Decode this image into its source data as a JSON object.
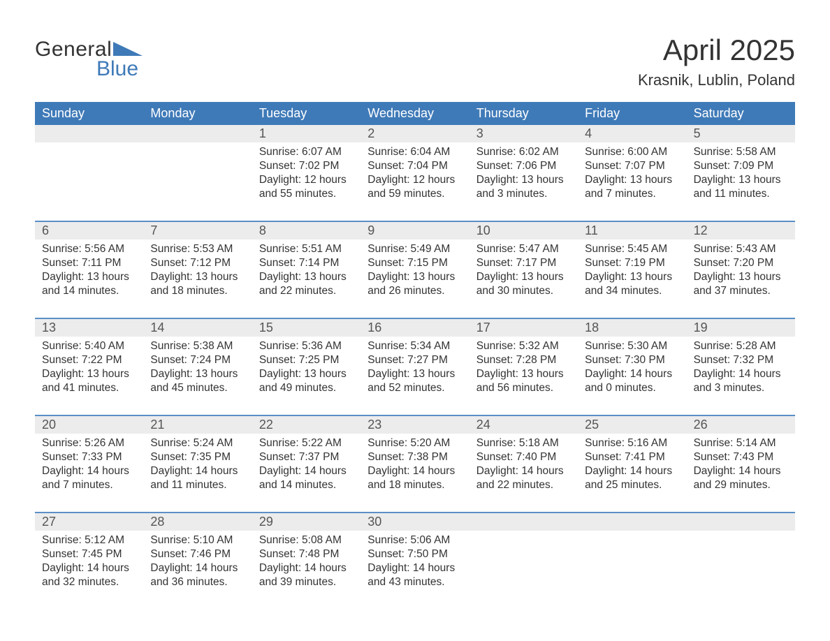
{
  "colors": {
    "accent": "#3f7ab8",
    "header_bg": "#3f7ab8",
    "daynum_bg": "#ececec",
    "row_line": "#5a8fc7",
    "text": "#333333",
    "background": "#ffffff"
  },
  "logo": {
    "line1": "General",
    "line2": "Blue"
  },
  "title": "April 2025",
  "subtitle": "Krasnik, Lublin, Poland",
  "day_headers": [
    "Sunday",
    "Monday",
    "Tuesday",
    "Wednesday",
    "Thursday",
    "Friday",
    "Saturday"
  ],
  "labels": {
    "sunrise": "Sunrise:",
    "sunset": "Sunset:",
    "daylight": "Daylight:"
  },
  "weeks": [
    [
      null,
      null,
      {
        "n": "1",
        "sunrise": "6:07 AM",
        "sunset": "7:02 PM",
        "daylight": "12 hours and 55 minutes."
      },
      {
        "n": "2",
        "sunrise": "6:04 AM",
        "sunset": "7:04 PM",
        "daylight": "12 hours and 59 minutes."
      },
      {
        "n": "3",
        "sunrise": "6:02 AM",
        "sunset": "7:06 PM",
        "daylight": "13 hours and 3 minutes."
      },
      {
        "n": "4",
        "sunrise": "6:00 AM",
        "sunset": "7:07 PM",
        "daylight": "13 hours and 7 minutes."
      },
      {
        "n": "5",
        "sunrise": "5:58 AM",
        "sunset": "7:09 PM",
        "daylight": "13 hours and 11 minutes."
      }
    ],
    [
      {
        "n": "6",
        "sunrise": "5:56 AM",
        "sunset": "7:11 PM",
        "daylight": "13 hours and 14 minutes."
      },
      {
        "n": "7",
        "sunrise": "5:53 AM",
        "sunset": "7:12 PM",
        "daylight": "13 hours and 18 minutes."
      },
      {
        "n": "8",
        "sunrise": "5:51 AM",
        "sunset": "7:14 PM",
        "daylight": "13 hours and 22 minutes."
      },
      {
        "n": "9",
        "sunrise": "5:49 AM",
        "sunset": "7:15 PM",
        "daylight": "13 hours and 26 minutes."
      },
      {
        "n": "10",
        "sunrise": "5:47 AM",
        "sunset": "7:17 PM",
        "daylight": "13 hours and 30 minutes."
      },
      {
        "n": "11",
        "sunrise": "5:45 AM",
        "sunset": "7:19 PM",
        "daylight": "13 hours and 34 minutes."
      },
      {
        "n": "12",
        "sunrise": "5:43 AM",
        "sunset": "7:20 PM",
        "daylight": "13 hours and 37 minutes."
      }
    ],
    [
      {
        "n": "13",
        "sunrise": "5:40 AM",
        "sunset": "7:22 PM",
        "daylight": "13 hours and 41 minutes."
      },
      {
        "n": "14",
        "sunrise": "5:38 AM",
        "sunset": "7:24 PM",
        "daylight": "13 hours and 45 minutes."
      },
      {
        "n": "15",
        "sunrise": "5:36 AM",
        "sunset": "7:25 PM",
        "daylight": "13 hours and 49 minutes."
      },
      {
        "n": "16",
        "sunrise": "5:34 AM",
        "sunset": "7:27 PM",
        "daylight": "13 hours and 52 minutes."
      },
      {
        "n": "17",
        "sunrise": "5:32 AM",
        "sunset": "7:28 PM",
        "daylight": "13 hours and 56 minutes."
      },
      {
        "n": "18",
        "sunrise": "5:30 AM",
        "sunset": "7:30 PM",
        "daylight": "14 hours and 0 minutes."
      },
      {
        "n": "19",
        "sunrise": "5:28 AM",
        "sunset": "7:32 PM",
        "daylight": "14 hours and 3 minutes."
      }
    ],
    [
      {
        "n": "20",
        "sunrise": "5:26 AM",
        "sunset": "7:33 PM",
        "daylight": "14 hours and 7 minutes."
      },
      {
        "n": "21",
        "sunrise": "5:24 AM",
        "sunset": "7:35 PM",
        "daylight": "14 hours and 11 minutes."
      },
      {
        "n": "22",
        "sunrise": "5:22 AM",
        "sunset": "7:37 PM",
        "daylight": "14 hours and 14 minutes."
      },
      {
        "n": "23",
        "sunrise": "5:20 AM",
        "sunset": "7:38 PM",
        "daylight": "14 hours and 18 minutes."
      },
      {
        "n": "24",
        "sunrise": "5:18 AM",
        "sunset": "7:40 PM",
        "daylight": "14 hours and 22 minutes."
      },
      {
        "n": "25",
        "sunrise": "5:16 AM",
        "sunset": "7:41 PM",
        "daylight": "14 hours and 25 minutes."
      },
      {
        "n": "26",
        "sunrise": "5:14 AM",
        "sunset": "7:43 PM",
        "daylight": "14 hours and 29 minutes."
      }
    ],
    [
      {
        "n": "27",
        "sunrise": "5:12 AM",
        "sunset": "7:45 PM",
        "daylight": "14 hours and 32 minutes."
      },
      {
        "n": "28",
        "sunrise": "5:10 AM",
        "sunset": "7:46 PM",
        "daylight": "14 hours and 36 minutes."
      },
      {
        "n": "29",
        "sunrise": "5:08 AM",
        "sunset": "7:48 PM",
        "daylight": "14 hours and 39 minutes."
      },
      {
        "n": "30",
        "sunrise": "5:06 AM",
        "sunset": "7:50 PM",
        "daylight": "14 hours and 43 minutes."
      },
      null,
      null,
      null
    ]
  ]
}
